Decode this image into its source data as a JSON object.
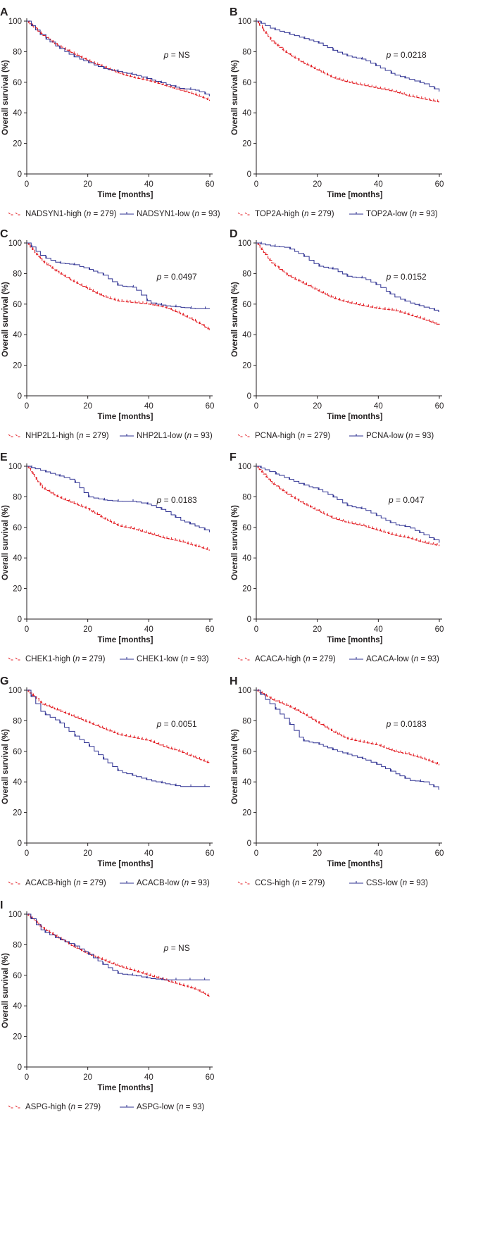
{
  "chart_data": [
    {
      "type": "line",
      "panel": "A",
      "xlabel": "Time [months]",
      "ylabel": "Overall survival (%)",
      "xlim": [
        0,
        60
      ],
      "ylim": [
        0,
        100
      ],
      "xticks": [
        0,
        20,
        40,
        60
      ],
      "yticks": [
        0,
        20,
        40,
        60,
        80,
        100
      ],
      "annotation": "p = NS",
      "series": [
        {
          "name": "NADSYN1-high (n = 279)",
          "color": "#e31e24",
          "style": "dashed",
          "x": [
            0,
            5,
            10,
            15,
            20,
            25,
            30,
            35,
            40,
            45,
            50,
            55,
            60
          ],
          "y": [
            100,
            91,
            84,
            79,
            74,
            70,
            66,
            63,
            61,
            58,
            55,
            52,
            48
          ]
        },
        {
          "name": "NADSYN1-low (n = 93)",
          "color": "#2e3192",
          "style": "solid",
          "x": [
            0,
            5,
            10,
            15,
            20,
            25,
            30,
            35,
            40,
            45,
            50,
            55,
            60
          ],
          "y": [
            100,
            90,
            83,
            77,
            73,
            69,
            67,
            65,
            62,
            59,
            56,
            55,
            51
          ]
        }
      ],
      "legend": [
        {
          "prefix": "NADSYN1-high (",
          "n": "n",
          "suffix": " = 279)"
        },
        {
          "prefix": "NADSYN1-low (",
          "n": "n",
          "suffix": " = 93)"
        }
      ]
    },
    {
      "type": "line",
      "panel": "B",
      "xlabel": "Time [months]",
      "ylabel": "Overall survival (%)",
      "xlim": [
        0,
        60
      ],
      "ylim": [
        0,
        100
      ],
      "xticks": [
        0,
        20,
        40,
        60
      ],
      "yticks": [
        0,
        20,
        40,
        60,
        80,
        100
      ],
      "annotation": "p = 0.0218",
      "series": [
        {
          "name": "TOP2A-high (n = 279)",
          "color": "#e31e24",
          "style": "dashed",
          "x": [
            0,
            5,
            10,
            15,
            20,
            25,
            30,
            35,
            40,
            45,
            50,
            55,
            60
          ],
          "y": [
            100,
            87,
            79,
            73,
            68,
            63,
            60,
            58,
            56,
            54,
            51,
            49,
            47
          ]
        },
        {
          "name": "TOP2A-low (n = 93)",
          "color": "#2e3192",
          "style": "solid",
          "x": [
            0,
            5,
            10,
            15,
            20,
            25,
            30,
            35,
            40,
            45,
            50,
            55,
            60
          ],
          "y": [
            100,
            95,
            92,
            89,
            86,
            81,
            77,
            75,
            70,
            65,
            62,
            59,
            54
          ]
        }
      ],
      "legend": [
        {
          "prefix": "TOP2A-high (",
          "n": "n",
          "suffix": " = 279)"
        },
        {
          "prefix": "TOP2A-low (",
          "n": "n",
          "suffix": " = 93)"
        }
      ]
    },
    {
      "type": "line",
      "panel": "C",
      "xlabel": "Time [months]",
      "ylabel": "Overall survival (%)",
      "xlim": [
        0,
        60
      ],
      "ylim": [
        0,
        100
      ],
      "xticks": [
        0,
        20,
        40,
        60
      ],
      "yticks": [
        0,
        20,
        40,
        60,
        80,
        100
      ],
      "annotation": "p = 0.0497",
      "series": [
        {
          "name": "NHP2L1-high (n = 279)",
          "color": "#e31e24",
          "style": "dashed",
          "x": [
            0,
            5,
            10,
            15,
            20,
            25,
            30,
            35,
            40,
            45,
            50,
            55,
            60
          ],
          "y": [
            100,
            88,
            81,
            75,
            70,
            65,
            62,
            61,
            60,
            58,
            54,
            49,
            43
          ]
        },
        {
          "name": "NHP2L1-low (n = 93)",
          "color": "#2e3192",
          "style": "solid",
          "x": [
            0,
            5,
            10,
            15,
            20,
            25,
            30,
            35,
            40,
            45,
            50,
            55,
            60
          ],
          "y": [
            100,
            91,
            87,
            86,
            83,
            79,
            72,
            71,
            61,
            59,
            58,
            57,
            57
          ]
        }
      ],
      "legend": [
        {
          "prefix": "NHP2L1-high (",
          "n": "n",
          "suffix": " = 279)"
        },
        {
          "prefix": "NHP2L1-low (",
          "n": "n",
          "suffix": " = 93)"
        }
      ]
    },
    {
      "type": "line",
      "panel": "D",
      "xlabel": "Time [months]",
      "ylabel": "Overall survival (%)",
      "xlim": [
        0,
        60
      ],
      "ylim": [
        0,
        100
      ],
      "xticks": [
        0,
        20,
        40,
        60
      ],
      "yticks": [
        0,
        20,
        40,
        60,
        80,
        100
      ],
      "annotation": "p = 0.0152",
      "series": [
        {
          "name": "PCNA-high (n = 279)",
          "color": "#e31e24",
          "style": "dashed",
          "x": [
            0,
            5,
            10,
            15,
            20,
            25,
            30,
            35,
            40,
            45,
            50,
            55,
            60
          ],
          "y": [
            100,
            87,
            79,
            74,
            69,
            64,
            61,
            59,
            57,
            56,
            53,
            50,
            46
          ]
        },
        {
          "name": "PCNA-low (n = 93)",
          "color": "#2e3192",
          "style": "solid",
          "x": [
            0,
            5,
            10,
            15,
            20,
            25,
            30,
            35,
            40,
            45,
            50,
            55,
            60
          ],
          "y": [
            100,
            98,
            97,
            92,
            85,
            83,
            78,
            77,
            72,
            65,
            61,
            58,
            55
          ]
        }
      ],
      "legend": [
        {
          "prefix": "PCNA-high (",
          "n": "n",
          "suffix": " = 279)"
        },
        {
          "prefix": "PCNA-low (",
          "n": "n",
          "suffix": " = 93)"
        }
      ]
    },
    {
      "type": "line",
      "panel": "E",
      "xlabel": "Time [months]",
      "ylabel": "Overall survival (%)",
      "xlim": [
        0,
        60
      ],
      "ylim": [
        0,
        100
      ],
      "xticks": [
        0,
        20,
        40,
        60
      ],
      "yticks": [
        0,
        20,
        40,
        60,
        80,
        100
      ],
      "annotation": "p = 0.0183",
      "series": [
        {
          "name": "CHEK1-high (n = 279)",
          "color": "#e31e24",
          "style": "dashed",
          "x": [
            0,
            5,
            10,
            15,
            20,
            25,
            30,
            35,
            40,
            45,
            50,
            55,
            60
          ],
          "y": [
            100,
            86,
            80,
            76,
            72,
            66,
            61,
            59,
            56,
            53,
            51,
            48,
            45
          ]
        },
        {
          "name": "CHEK1-low (n = 93)",
          "color": "#2e3192",
          "style": "solid",
          "x": [
            0,
            5,
            10,
            15,
            20,
            25,
            30,
            35,
            40,
            45,
            50,
            55,
            60
          ],
          "y": [
            100,
            97,
            94,
            91,
            80,
            78,
            77,
            77,
            75,
            71,
            65,
            61,
            57
          ]
        }
      ],
      "legend": [
        {
          "prefix": "CHEK1-high (",
          "n": "n",
          "suffix": " = 279)"
        },
        {
          "prefix": "CHEK1-low (",
          "n": "n",
          "suffix": " = 93)"
        }
      ]
    },
    {
      "type": "line",
      "panel": "F",
      "xlabel": "Time [months]",
      "ylabel": "Overall survival (%)",
      "xlim": [
        0,
        60
      ],
      "ylim": [
        0,
        100
      ],
      "xticks": [
        0,
        20,
        40,
        60
      ],
      "yticks": [
        0,
        20,
        40,
        60,
        80,
        100
      ],
      "annotation": "p = 0.047",
      "series": [
        {
          "name": "ACACA-high (n = 279)",
          "color": "#e31e24",
          "style": "dashed",
          "x": [
            0,
            5,
            10,
            15,
            20,
            25,
            30,
            35,
            40,
            45,
            50,
            55,
            60
          ],
          "y": [
            100,
            89,
            82,
            76,
            71,
            66,
            63,
            61,
            58,
            55,
            53,
            50,
            48
          ]
        },
        {
          "name": "ACACA-low (n = 93)",
          "color": "#2e3192",
          "style": "solid",
          "x": [
            0,
            5,
            10,
            15,
            20,
            25,
            30,
            35,
            40,
            45,
            50,
            55,
            60
          ],
          "y": [
            100,
            96,
            92,
            88,
            85,
            80,
            74,
            72,
            67,
            62,
            60,
            55,
            50
          ]
        }
      ],
      "legend": [
        {
          "prefix": "ACACA-high (",
          "n": "n",
          "suffix": " = 279)"
        },
        {
          "prefix": "ACACA-low (",
          "n": "n",
          "suffix": " = 93)"
        }
      ]
    },
    {
      "type": "line",
      "panel": "G",
      "xlabel": "Time [months]",
      "ylabel": "Overall survival (%)",
      "xlim": [
        0,
        60
      ],
      "ylim": [
        0,
        100
      ],
      "xticks": [
        0,
        20,
        40,
        60
      ],
      "yticks": [
        0,
        20,
        40,
        60,
        80,
        100
      ],
      "annotation": "p = 0.0051",
      "series": [
        {
          "name": "ACACB-high (n = 279)",
          "color": "#e31e24",
          "style": "dashed",
          "x": [
            0,
            5,
            10,
            15,
            20,
            25,
            30,
            35,
            40,
            45,
            50,
            55,
            60
          ],
          "y": [
            100,
            91,
            87,
            83,
            79,
            75,
            71,
            69,
            67,
            63,
            60,
            56,
            52
          ]
        },
        {
          "name": "ACACB-low (n = 93)",
          "color": "#2e3192",
          "style": "solid",
          "x": [
            0,
            5,
            10,
            15,
            20,
            25,
            30,
            35,
            40,
            45,
            50,
            55,
            60
          ],
          "y": [
            100,
            85,
            80,
            71,
            64,
            55,
            47,
            44,
            41,
            39,
            37,
            37,
            37
          ]
        }
      ],
      "legend": [
        {
          "prefix": "ACACB-high (",
          "n": "n",
          "suffix": " = 279)"
        },
        {
          "prefix": "ACACB-low (",
          "n": "n",
          "suffix": " = 93)"
        }
      ]
    },
    {
      "type": "line",
      "panel": "H",
      "xlabel": "Time [months]",
      "ylabel": "Overall survival (%)",
      "xlim": [
        0,
        60
      ],
      "ylim": [
        0,
        100
      ],
      "xticks": [
        0,
        20,
        40,
        60
      ],
      "yticks": [
        0,
        20,
        40,
        60,
        80,
        100
      ],
      "annotation": "p = 0.0183",
      "series": [
        {
          "name": "CCS-high (n = 279)",
          "color": "#e31e24",
          "style": "dashed",
          "x": [
            0,
            5,
            10,
            15,
            20,
            25,
            30,
            35,
            40,
            45,
            50,
            55,
            60
          ],
          "y": [
            100,
            94,
            90,
            85,
            79,
            73,
            68,
            66,
            64,
            60,
            58,
            55,
            51
          ]
        },
        {
          "name": "CSS-low (n = 93)",
          "color": "#2e3192",
          "style": "solid",
          "x": [
            0,
            5,
            10,
            15,
            20,
            25,
            30,
            35,
            40,
            45,
            50,
            55,
            60
          ],
          "y": [
            100,
            90,
            80,
            67,
            65,
            61,
            58,
            55,
            51,
            46,
            41,
            40,
            35
          ]
        }
      ],
      "legend": [
        {
          "prefix": "CCS-high (",
          "n": "n",
          "suffix": " = 279)"
        },
        {
          "prefix": "CSS-low (",
          "n": "n",
          "suffix": " = 93)"
        }
      ]
    },
    {
      "type": "line",
      "panel": "I",
      "xlabel": "Time [months]",
      "ylabel": "Overall survival (%)",
      "xlim": [
        0,
        60
      ],
      "ylim": [
        0,
        100
      ],
      "xticks": [
        0,
        20,
        40,
        60
      ],
      "yticks": [
        0,
        20,
        40,
        60,
        80,
        100
      ],
      "annotation": "p = NS",
      "series": [
        {
          "name": "ASPG-high (n = 279)",
          "color": "#e31e24",
          "style": "dashed",
          "x": [
            0,
            5,
            10,
            15,
            20,
            25,
            30,
            35,
            40,
            45,
            50,
            55,
            60
          ],
          "y": [
            100,
            91,
            85,
            79,
            74,
            70,
            66,
            63,
            60,
            57,
            54,
            51,
            46
          ]
        },
        {
          "name": "ASPG-low (n = 93)",
          "color": "#2e3192",
          "style": "solid",
          "x": [
            0,
            5,
            10,
            15,
            20,
            25,
            30,
            35,
            40,
            45,
            50,
            55,
            60
          ],
          "y": [
            100,
            89,
            84,
            80,
            74,
            67,
            61,
            60,
            58,
            57,
            57,
            57,
            57
          ]
        }
      ],
      "legend": [
        {
          "prefix": "ASPG-high (",
          "n": "n",
          "suffix": " = 279)"
        },
        {
          "prefix": "ASPG-low (",
          "n": "n",
          "suffix": " = 93)"
        }
      ]
    }
  ]
}
